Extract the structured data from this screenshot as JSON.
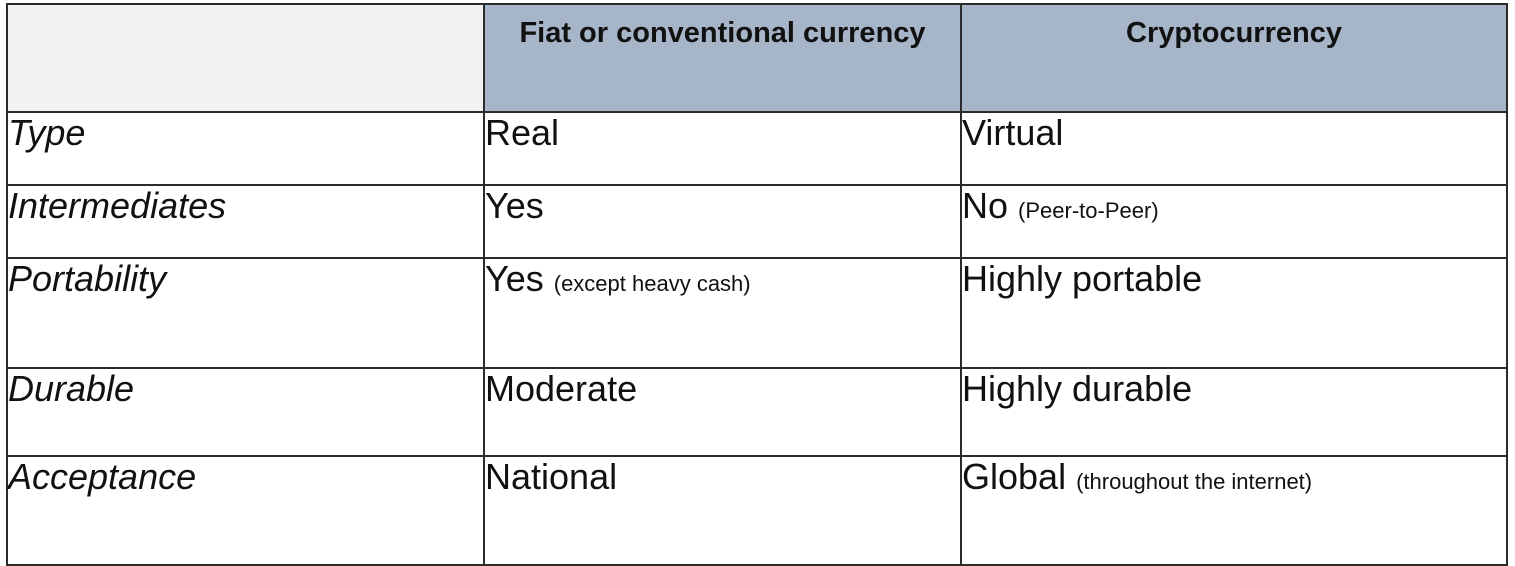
{
  "table": {
    "headers": [
      "",
      "Fiat or conventional currency",
      "Cryptocurrency"
    ],
    "rows": [
      {
        "label": "Type",
        "fiat": "Real",
        "fiat_note": "",
        "crypto": "Virtual",
        "crypto_note": ""
      },
      {
        "label": "Intermediates",
        "fiat": "Yes",
        "fiat_note": "",
        "crypto": "No",
        "crypto_note": "(Peer-to-Peer)"
      },
      {
        "label": "Portability",
        "fiat": "Yes",
        "fiat_note": "(except heavy cash)",
        "crypto": "Highly portable",
        "crypto_note": ""
      },
      {
        "label": "Durable",
        "fiat": "Moderate",
        "fiat_note": "",
        "crypto": "Highly durable",
        "crypto_note": ""
      },
      {
        "label": "Acceptance",
        "fiat": "National",
        "fiat_note": "",
        "crypto": "Global",
        "crypto_note": "(throughout the internet)"
      }
    ]
  },
  "colors": {
    "header_bg": "#a7b5c9",
    "corner_bg": "#f2f2f2",
    "border": "#2b2b2b"
  }
}
